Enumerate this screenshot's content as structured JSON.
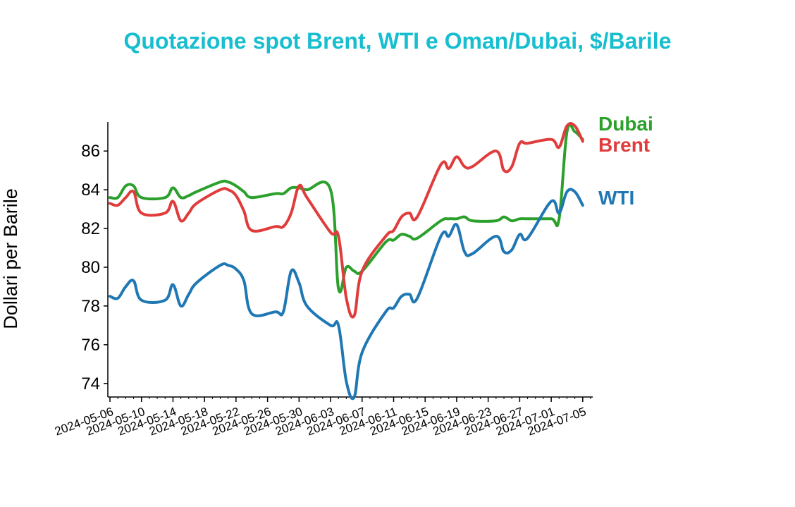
{
  "chart_data": {
    "type": "line",
    "title": "Quotazione spot Brent, WTI e Oman/Dubai, $/Barile",
    "title_color": "#17becf",
    "xlabel": "",
    "ylabel": "Dollari per Barile",
    "ylim": [
      73.3,
      87.5
    ],
    "yticks": [
      74,
      76,
      78,
      80,
      82,
      84,
      86
    ],
    "xlim": [
      "2024-05-06",
      "2024-07-06"
    ],
    "xticks": [
      "2024-05-06",
      "2024-05-10",
      "2024-05-14",
      "2024-05-18",
      "2024-05-22",
      "2024-05-26",
      "2024-05-30",
      "2024-06-03",
      "2024-06-07",
      "2024-06-11",
      "2024-06-15",
      "2024-06-19",
      "2024-06-23",
      "2024-06-27",
      "2024-07-01",
      "2024-07-05"
    ],
    "grid": false,
    "legend_placement": "right, at line ends",
    "series": [
      {
        "name": "Dubai",
        "color": "#2ca02c",
        "x": [
          "2024-05-06",
          "2024-05-07",
          "2024-05-08",
          "2024-05-09",
          "2024-05-10",
          "2024-05-13",
          "2024-05-14",
          "2024-05-15",
          "2024-05-16",
          "2024-05-17",
          "2024-05-20",
          "2024-05-21",
          "2024-05-22",
          "2024-05-23",
          "2024-05-24",
          "2024-05-27",
          "2024-05-28",
          "2024-05-29",
          "2024-05-30",
          "2024-05-31",
          "2024-06-03",
          "2024-06-04",
          "2024-06-05",
          "2024-06-06",
          "2024-06-07",
          "2024-06-10",
          "2024-06-11",
          "2024-06-12",
          "2024-06-13",
          "2024-06-14",
          "2024-06-17",
          "2024-06-18",
          "2024-06-19",
          "2024-06-20",
          "2024-06-21",
          "2024-06-24",
          "2024-06-25",
          "2024-06-26",
          "2024-06-27",
          "2024-06-28",
          "2024-07-01",
          "2024-07-02",
          "2024-07-03",
          "2024-07-04",
          "2024-07-05"
        ],
        "values": [
          83.6,
          83.6,
          84.2,
          84.2,
          83.6,
          83.6,
          84.1,
          83.6,
          83.7,
          83.9,
          84.4,
          84.4,
          84.2,
          83.9,
          83.6,
          83.8,
          83.8,
          84.1,
          84.1,
          84.0,
          84.0,
          78.9,
          80.0,
          79.8,
          79.8,
          81.3,
          81.4,
          81.7,
          81.6,
          81.5,
          82.4,
          82.5,
          82.5,
          82.6,
          82.4,
          82.4,
          82.6,
          82.4,
          82.5,
          82.5,
          82.5,
          82.5,
          87.0,
          87.0,
          86.6
        ]
      },
      {
        "name": "Brent",
        "color": "#e03c3c",
        "x": [
          "2024-05-06",
          "2024-05-07",
          "2024-05-08",
          "2024-05-09",
          "2024-05-10",
          "2024-05-13",
          "2024-05-14",
          "2024-05-15",
          "2024-05-16",
          "2024-05-17",
          "2024-05-20",
          "2024-05-21",
          "2024-05-22",
          "2024-05-23",
          "2024-05-24",
          "2024-05-27",
          "2024-05-28",
          "2024-05-29",
          "2024-05-30",
          "2024-05-31",
          "2024-06-03",
          "2024-06-04",
          "2024-06-05",
          "2024-06-06",
          "2024-06-07",
          "2024-06-10",
          "2024-06-11",
          "2024-06-12",
          "2024-06-13",
          "2024-06-14",
          "2024-06-17",
          "2024-06-18",
          "2024-06-19",
          "2024-06-20",
          "2024-06-21",
          "2024-06-24",
          "2024-06-25",
          "2024-06-26",
          "2024-06-27",
          "2024-06-28",
          "2024-07-01",
          "2024-07-02",
          "2024-07-03",
          "2024-07-04",
          "2024-07-05"
        ],
        "values": [
          83.3,
          83.2,
          83.6,
          83.9,
          82.8,
          82.8,
          83.4,
          82.4,
          82.8,
          83.3,
          84.0,
          84.0,
          83.7,
          82.9,
          81.9,
          82.1,
          82.1,
          82.8,
          84.2,
          83.6,
          81.8,
          81.6,
          78.4,
          77.5,
          79.8,
          81.6,
          81.9,
          82.6,
          82.8,
          82.6,
          85.3,
          85.1,
          85.7,
          85.2,
          85.2,
          86.0,
          85.0,
          85.2,
          86.4,
          86.4,
          86.6,
          86.2,
          87.3,
          87.3,
          86.5
        ]
      },
      {
        "name": "WTI",
        "color": "#1f77b4",
        "x": [
          "2024-05-06",
          "2024-05-07",
          "2024-05-08",
          "2024-05-09",
          "2024-05-10",
          "2024-05-13",
          "2024-05-14",
          "2024-05-15",
          "2024-05-16",
          "2024-05-17",
          "2024-05-20",
          "2024-05-21",
          "2024-05-22",
          "2024-05-23",
          "2024-05-24",
          "2024-05-27",
          "2024-05-28",
          "2024-05-29",
          "2024-05-30",
          "2024-05-31",
          "2024-06-03",
          "2024-06-04",
          "2024-06-05",
          "2024-06-06",
          "2024-06-07",
          "2024-06-10",
          "2024-06-11",
          "2024-06-12",
          "2024-06-13",
          "2024-06-14",
          "2024-06-17",
          "2024-06-18",
          "2024-06-19",
          "2024-06-20",
          "2024-06-21",
          "2024-06-24",
          "2024-06-25",
          "2024-06-26",
          "2024-06-27",
          "2024-06-28",
          "2024-07-01",
          "2024-07-02",
          "2024-07-03",
          "2024-07-04",
          "2024-07-05"
        ],
        "values": [
          78.5,
          78.4,
          79.0,
          79.3,
          78.3,
          78.3,
          79.1,
          78.0,
          78.6,
          79.2,
          80.1,
          80.1,
          79.9,
          79.3,
          77.6,
          77.7,
          77.7,
          79.8,
          79.2,
          78.0,
          77.0,
          77.0,
          74.1,
          73.3,
          75.6,
          77.7,
          77.9,
          78.5,
          78.6,
          78.4,
          81.6,
          81.6,
          82.2,
          80.8,
          80.7,
          81.6,
          80.8,
          80.9,
          81.7,
          81.5,
          83.4,
          82.8,
          83.9,
          83.9,
          83.2
        ]
      }
    ]
  }
}
